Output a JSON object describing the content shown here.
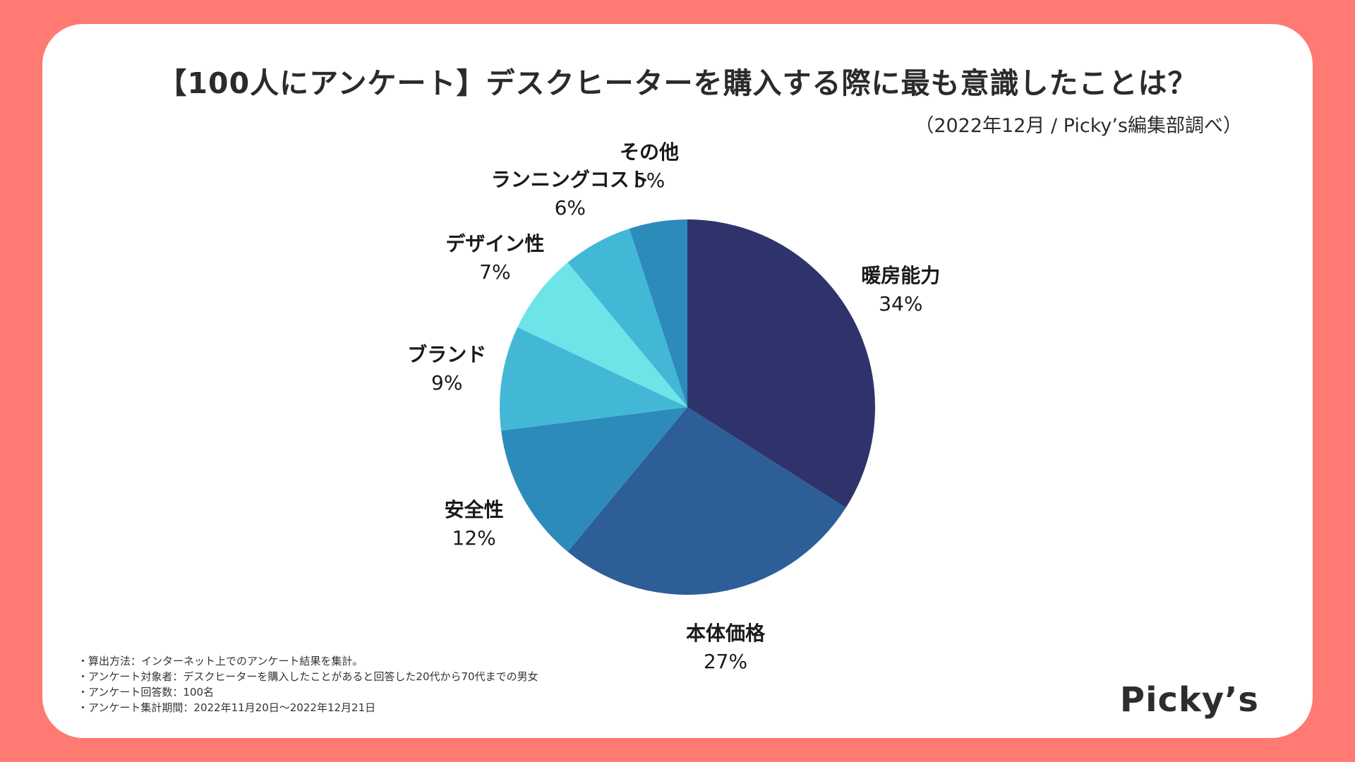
{
  "title": "【100人にアンケート】デスクヒーターを購入する際に最も意識したことは？",
  "subtitle": "（2022年12月 / Picky’s編集部調べ）",
  "notes": [
    "算出方法：インターネット上でのアンケート結果を集計。",
    "アンケート対象者：デスクヒーターを購入したことがあると回答した20代から70代までの男女",
    "アンケート回答数：100名",
    "アンケート集計期間：2022年11月20日〜2022年12月21日"
  ],
  "logo": "Picky’s",
  "chart_data": {
    "type": "pie",
    "start": "12 o'clock",
    "direction": "clockwise",
    "slices": [
      {
        "label": "暖房能力",
        "value": 34,
        "pct": "34%",
        "color": "#2f336b"
      },
      {
        "label": "本体価格",
        "value": 27,
        "pct": "27%",
        "color": "#2d5e97"
      },
      {
        "label": "安全性",
        "value": 12,
        "pct": "12%",
        "color": "#2d8bbb"
      },
      {
        "label": "ブランド",
        "value": 9,
        "pct": "9%",
        "color": "#42b8d6"
      },
      {
        "label": "デザイン性",
        "value": 7,
        "pct": "7%",
        "color": "#6de4e8"
      },
      {
        "label": "ランニングコスト",
        "value": 6,
        "pct": "6%",
        "color": "#42b8d6"
      },
      {
        "label": "その他",
        "value": 5,
        "pct": "5%",
        "color": "#2d8bbb"
      }
    ]
  }
}
